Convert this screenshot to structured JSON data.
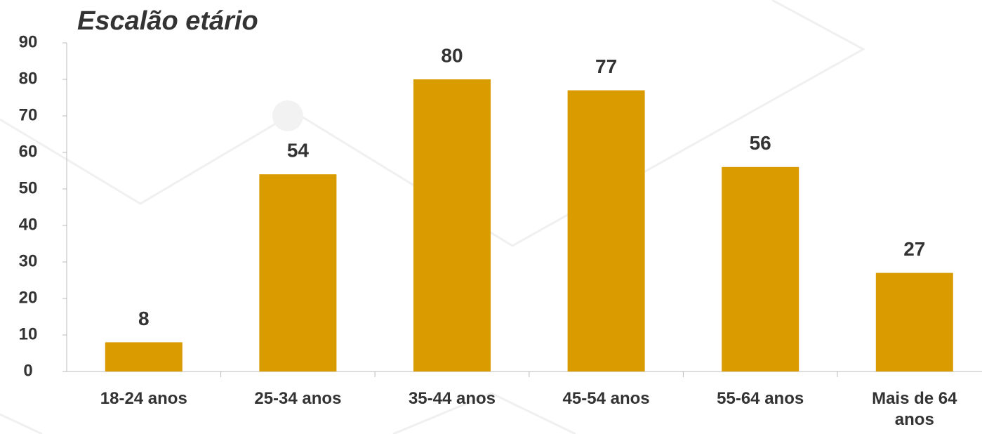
{
  "chart_data": {
    "type": "bar",
    "title": "Escalão etário",
    "categories": [
      "18-24 anos",
      "25-34 anos",
      "35-44 anos",
      "45-54 anos",
      "55-64 anos",
      "Mais de 64 anos"
    ],
    "values": [
      8,
      54,
      80,
      77,
      56,
      27
    ],
    "color": "#d99b00",
    "ylim": [
      0,
      90
    ],
    "yticks": [
      0,
      10,
      20,
      30,
      40,
      50,
      60,
      70,
      80,
      90
    ],
    "grid": false
  }
}
